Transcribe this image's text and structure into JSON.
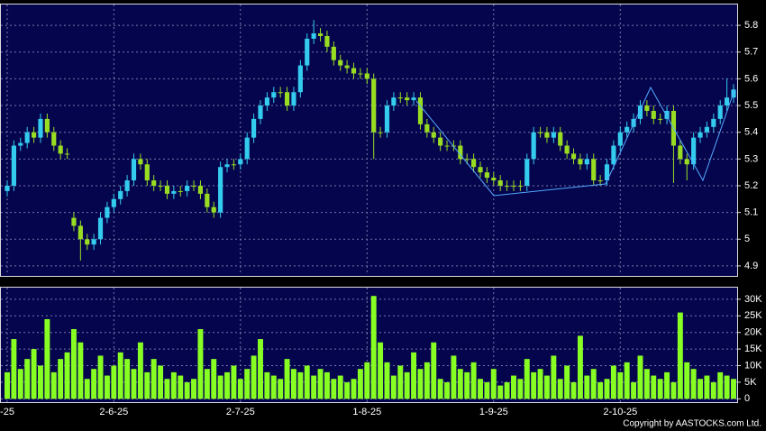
{
  "chart_data": {
    "type": "candlestick",
    "up_color": "#33ccee",
    "down_color": "#99dd22",
    "volume_color": "#88ff22",
    "ylim": [
      4.866,
      5.878
    ],
    "yticks": [
      4.9,
      5,
      5.1,
      5.2,
      5.3,
      5.4,
      5.5,
      5.6,
      5.7,
      5.8
    ],
    "volume_ylim": [
      -1000,
      33500
    ],
    "volume_ticks": [
      0,
      {
        "value": 5000,
        "label": "5K"
      },
      {
        "value": 10000,
        "label": "10K"
      },
      {
        "value": 15000,
        "label": "15K"
      },
      {
        "value": 20000,
        "label": "20K"
      },
      {
        "value": 25000,
        "label": "25K"
      },
      {
        "value": 30000,
        "label": "30K"
      }
    ],
    "grid": true,
    "footer": "Copyright by AASTOCKS.com Ltd.",
    "categories": [
      "-25",
      null,
      null,
      null,
      null,
      null,
      null,
      null,
      null,
      null,
      null,
      null,
      null,
      null,
      null,
      null,
      "2-6-25",
      null,
      null,
      null,
      null,
      null,
      null,
      null,
      null,
      null,
      null,
      null,
      null,
      null,
      null,
      null,
      null,
      null,
      null,
      "2-7-25",
      null,
      null,
      null,
      null,
      null,
      null,
      null,
      null,
      null,
      null,
      null,
      null,
      null,
      null,
      null,
      null,
      null,
      null,
      "1-8-25",
      null,
      null,
      null,
      null,
      null,
      null,
      null,
      null,
      null,
      null,
      null,
      null,
      null,
      null,
      null,
      null,
      null,
      null,
      "1-9-25",
      null,
      null,
      null,
      null,
      null,
      null,
      null,
      null,
      null,
      null,
      null,
      null,
      null,
      null,
      null,
      null,
      null,
      null,
      "2-10-25",
      null,
      null,
      null,
      null,
      null,
      null,
      null,
      null,
      null,
      null,
      null,
      null,
      null,
      null,
      null,
      null,
      null
    ],
    "candles": [
      [
        5.18,
        5.22,
        5.16,
        5.2
      ],
      [
        5.2,
        5.37,
        5.18,
        5.35
      ],
      [
        5.35,
        5.38,
        5.33,
        5.36
      ],
      [
        5.36,
        5.42,
        5.34,
        5.4
      ],
      [
        5.4,
        5.42,
        5.36,
        5.38
      ],
      [
        5.38,
        5.47,
        5.36,
        5.45
      ],
      [
        5.45,
        5.47,
        5.38,
        5.4
      ],
      [
        5.4,
        5.42,
        5.33,
        5.35
      ],
      [
        5.35,
        5.37,
        5.3,
        5.32
      ],
      [
        5.32,
        5.34,
        5.3,
        5.32
      ],
      [
        5.08,
        5.1,
        5.03,
        5.05
      ],
      [
        5.05,
        5.07,
        4.92,
        5
      ],
      [
        5,
        5.02,
        4.96,
        4.98
      ],
      [
        4.98,
        5.02,
        4.96,
        5
      ],
      [
        5,
        5.1,
        4.98,
        5.08
      ],
      [
        5.08,
        5.14,
        5.06,
        5.12
      ],
      [
        5.12,
        5.17,
        5.1,
        5.15
      ],
      [
        5.15,
        5.2,
        5.13,
        5.18
      ],
      [
        5.18,
        5.24,
        5.16,
        5.22
      ],
      [
        5.22,
        5.32,
        5.2,
        5.3
      ],
      [
        5.3,
        5.32,
        5.26,
        5.28
      ],
      [
        5.28,
        5.3,
        5.2,
        5.22
      ],
      [
        5.22,
        5.24,
        5.18,
        5.2
      ],
      [
        5.2,
        5.22,
        5.18,
        5.2
      ],
      [
        5.2,
        5.22,
        5.15,
        5.17
      ],
      [
        5.17,
        5.2,
        5.15,
        5.18
      ],
      [
        5.18,
        5.2,
        5.16,
        5.18
      ],
      [
        5.18,
        5.22,
        5.16,
        5.2
      ],
      [
        5.2,
        5.22,
        5.18,
        5.2
      ],
      [
        5.2,
        5.22,
        5.15,
        5.17
      ],
      [
        5.17,
        5.19,
        5.1,
        5.12
      ],
      [
        5.12,
        5.14,
        5.08,
        5.1
      ],
      [
        5.1,
        5.29,
        5.08,
        5.27
      ],
      [
        5.27,
        5.3,
        5.25,
        5.28
      ],
      [
        5.28,
        5.3,
        5.26,
        5.28
      ],
      [
        5.28,
        5.32,
        5.26,
        5.3
      ],
      [
        5.3,
        5.4,
        5.28,
        5.38
      ],
      [
        5.38,
        5.47,
        5.36,
        5.45
      ],
      [
        5.45,
        5.52,
        5.43,
        5.5
      ],
      [
        5.5,
        5.55,
        5.48,
        5.53
      ],
      [
        5.53,
        5.57,
        5.51,
        5.55
      ],
      [
        5.55,
        5.57,
        5.53,
        5.55
      ],
      [
        5.55,
        5.57,
        5.48,
        5.5
      ],
      [
        5.5,
        5.57,
        5.48,
        5.55
      ],
      [
        5.55,
        5.67,
        5.53,
        5.65
      ],
      [
        5.65,
        5.77,
        5.63,
        5.75
      ],
      [
        5.75,
        5.82,
        5.73,
        5.77
      ],
      [
        5.77,
        5.79,
        5.74,
        5.76
      ],
      [
        5.76,
        5.78,
        5.7,
        5.72
      ],
      [
        5.72,
        5.74,
        5.65,
        5.67
      ],
      [
        5.67,
        5.69,
        5.63,
        5.65
      ],
      [
        5.65,
        5.67,
        5.62,
        5.64
      ],
      [
        5.64,
        5.66,
        5.6,
        5.62
      ],
      [
        5.62,
        5.64,
        5.6,
        5.62
      ],
      [
        5.62,
        5.64,
        5.58,
        5.6
      ],
      [
        5.6,
        5.62,
        5.3,
        5.4
      ],
      [
        5.4,
        5.42,
        5.38,
        5.4
      ],
      [
        5.4,
        5.52,
        5.38,
        5.5
      ],
      [
        5.5,
        5.55,
        5.48,
        5.53
      ],
      [
        5.53,
        5.55,
        5.51,
        5.53
      ],
      [
        5.53,
        5.55,
        5.5,
        5.52
      ],
      [
        5.52,
        5.55,
        5.5,
        5.53
      ],
      [
        5.53,
        5.55,
        5.41,
        5.43
      ],
      [
        5.43,
        5.45,
        5.38,
        5.4
      ],
      [
        5.4,
        5.42,
        5.36,
        5.38
      ],
      [
        5.38,
        5.4,
        5.33,
        5.35
      ],
      [
        5.35,
        5.37,
        5.33,
        5.35
      ],
      [
        5.35,
        5.37,
        5.33,
        5.35
      ],
      [
        5.35,
        5.37,
        5.28,
        5.3
      ],
      [
        5.3,
        5.32,
        5.28,
        5.3
      ],
      [
        5.3,
        5.32,
        5.25,
        5.27
      ],
      [
        5.27,
        5.29,
        5.23,
        5.25
      ],
      [
        5.25,
        5.27,
        5.21,
        5.23
      ],
      [
        5.23,
        5.25,
        5.2,
        5.22
      ],
      [
        5.22,
        5.24,
        5.18,
        5.2
      ],
      [
        5.2,
        5.22,
        5.18,
        5.2
      ],
      [
        5.2,
        5.22,
        5.18,
        5.2
      ],
      [
        5.2,
        5.22,
        5.18,
        5.2
      ],
      [
        5.2,
        5.32,
        5.18,
        5.3
      ],
      [
        5.3,
        5.42,
        5.28,
        5.4
      ],
      [
        5.4,
        5.42,
        5.38,
        5.4
      ],
      [
        5.4,
        5.42,
        5.36,
        5.38
      ],
      [
        5.38,
        5.42,
        5.36,
        5.4
      ],
      [
        5.4,
        5.42,
        5.33,
        5.35
      ],
      [
        5.35,
        5.37,
        5.3,
        5.32
      ],
      [
        5.32,
        5.34,
        5.28,
        5.3
      ],
      [
        5.3,
        5.32,
        5.26,
        5.28
      ],
      [
        5.28,
        5.32,
        5.26,
        5.3
      ],
      [
        5.3,
        5.32,
        5.2,
        5.22
      ],
      [
        5.22,
        5.24,
        5.2,
        5.22
      ],
      [
        5.22,
        5.3,
        5.2,
        5.28
      ],
      [
        5.28,
        5.37,
        5.26,
        5.35
      ],
      [
        5.35,
        5.42,
        5.33,
        5.4
      ],
      [
        5.4,
        5.44,
        5.38,
        5.42
      ],
      [
        5.42,
        5.47,
        5.4,
        5.45
      ],
      [
        5.45,
        5.52,
        5.43,
        5.5
      ],
      [
        5.5,
        5.52,
        5.46,
        5.48
      ],
      [
        5.48,
        5.5,
        5.43,
        5.45
      ],
      [
        5.45,
        5.47,
        5.43,
        5.45
      ],
      [
        5.45,
        5.5,
        5.43,
        5.48
      ],
      [
        5.48,
        5.5,
        5.21,
        5.35
      ],
      [
        5.35,
        5.37,
        5.28,
        5.3
      ],
      [
        5.3,
        5.32,
        5.22,
        5.28
      ],
      [
        5.28,
        5.4,
        5.26,
        5.38
      ],
      [
        5.38,
        5.42,
        5.36,
        5.4
      ],
      [
        5.4,
        5.44,
        5.38,
        5.42
      ],
      [
        5.42,
        5.47,
        5.4,
        5.45
      ],
      [
        5.45,
        5.52,
        5.43,
        5.5
      ],
      [
        5.5,
        5.6,
        5.48,
        5.53
      ],
      [
        5.53,
        5.58,
        5.51,
        5.56
      ]
    ],
    "volume": [
      8000,
      18000,
      9000,
      12000,
      15000,
      10000,
      24000,
      8000,
      12000,
      14000,
      21000,
      17000,
      6000,
      9000,
      13000,
      7000,
      10000,
      14000,
      12000,
      9000,
      17000,
      8000,
      12000,
      10000,
      6000,
      8000,
      7000,
      5000,
      6000,
      21000,
      9000,
      12000,
      7000,
      8000,
      10000,
      6000,
      9000,
      13000,
      18000,
      8000,
      7000,
      6000,
      12000,
      9000,
      8000,
      10000,
      7000,
      9000,
      8000,
      6000,
      7000,
      5000,
      6000,
      9000,
      11000,
      31000,
      17000,
      11000,
      7000,
      10000,
      8000,
      14000,
      9000,
      11000,
      17000,
      6000,
      5000,
      13000,
      9000,
      8000,
      11000,
      6000,
      5000,
      9000,
      4000,
      5000,
      7000,
      6000,
      12000,
      8000,
      9000,
      7000,
      13000,
      6000,
      10000,
      5000,
      19000,
      7000,
      9000,
      5000,
      6000,
      10000,
      8000,
      11000,
      5000,
      13000,
      9000,
      7000,
      6000,
      8000,
      5000,
      26000,
      11000,
      9000,
      6000,
      7000,
      5000,
      8000,
      7000,
      6000
    ]
  }
}
